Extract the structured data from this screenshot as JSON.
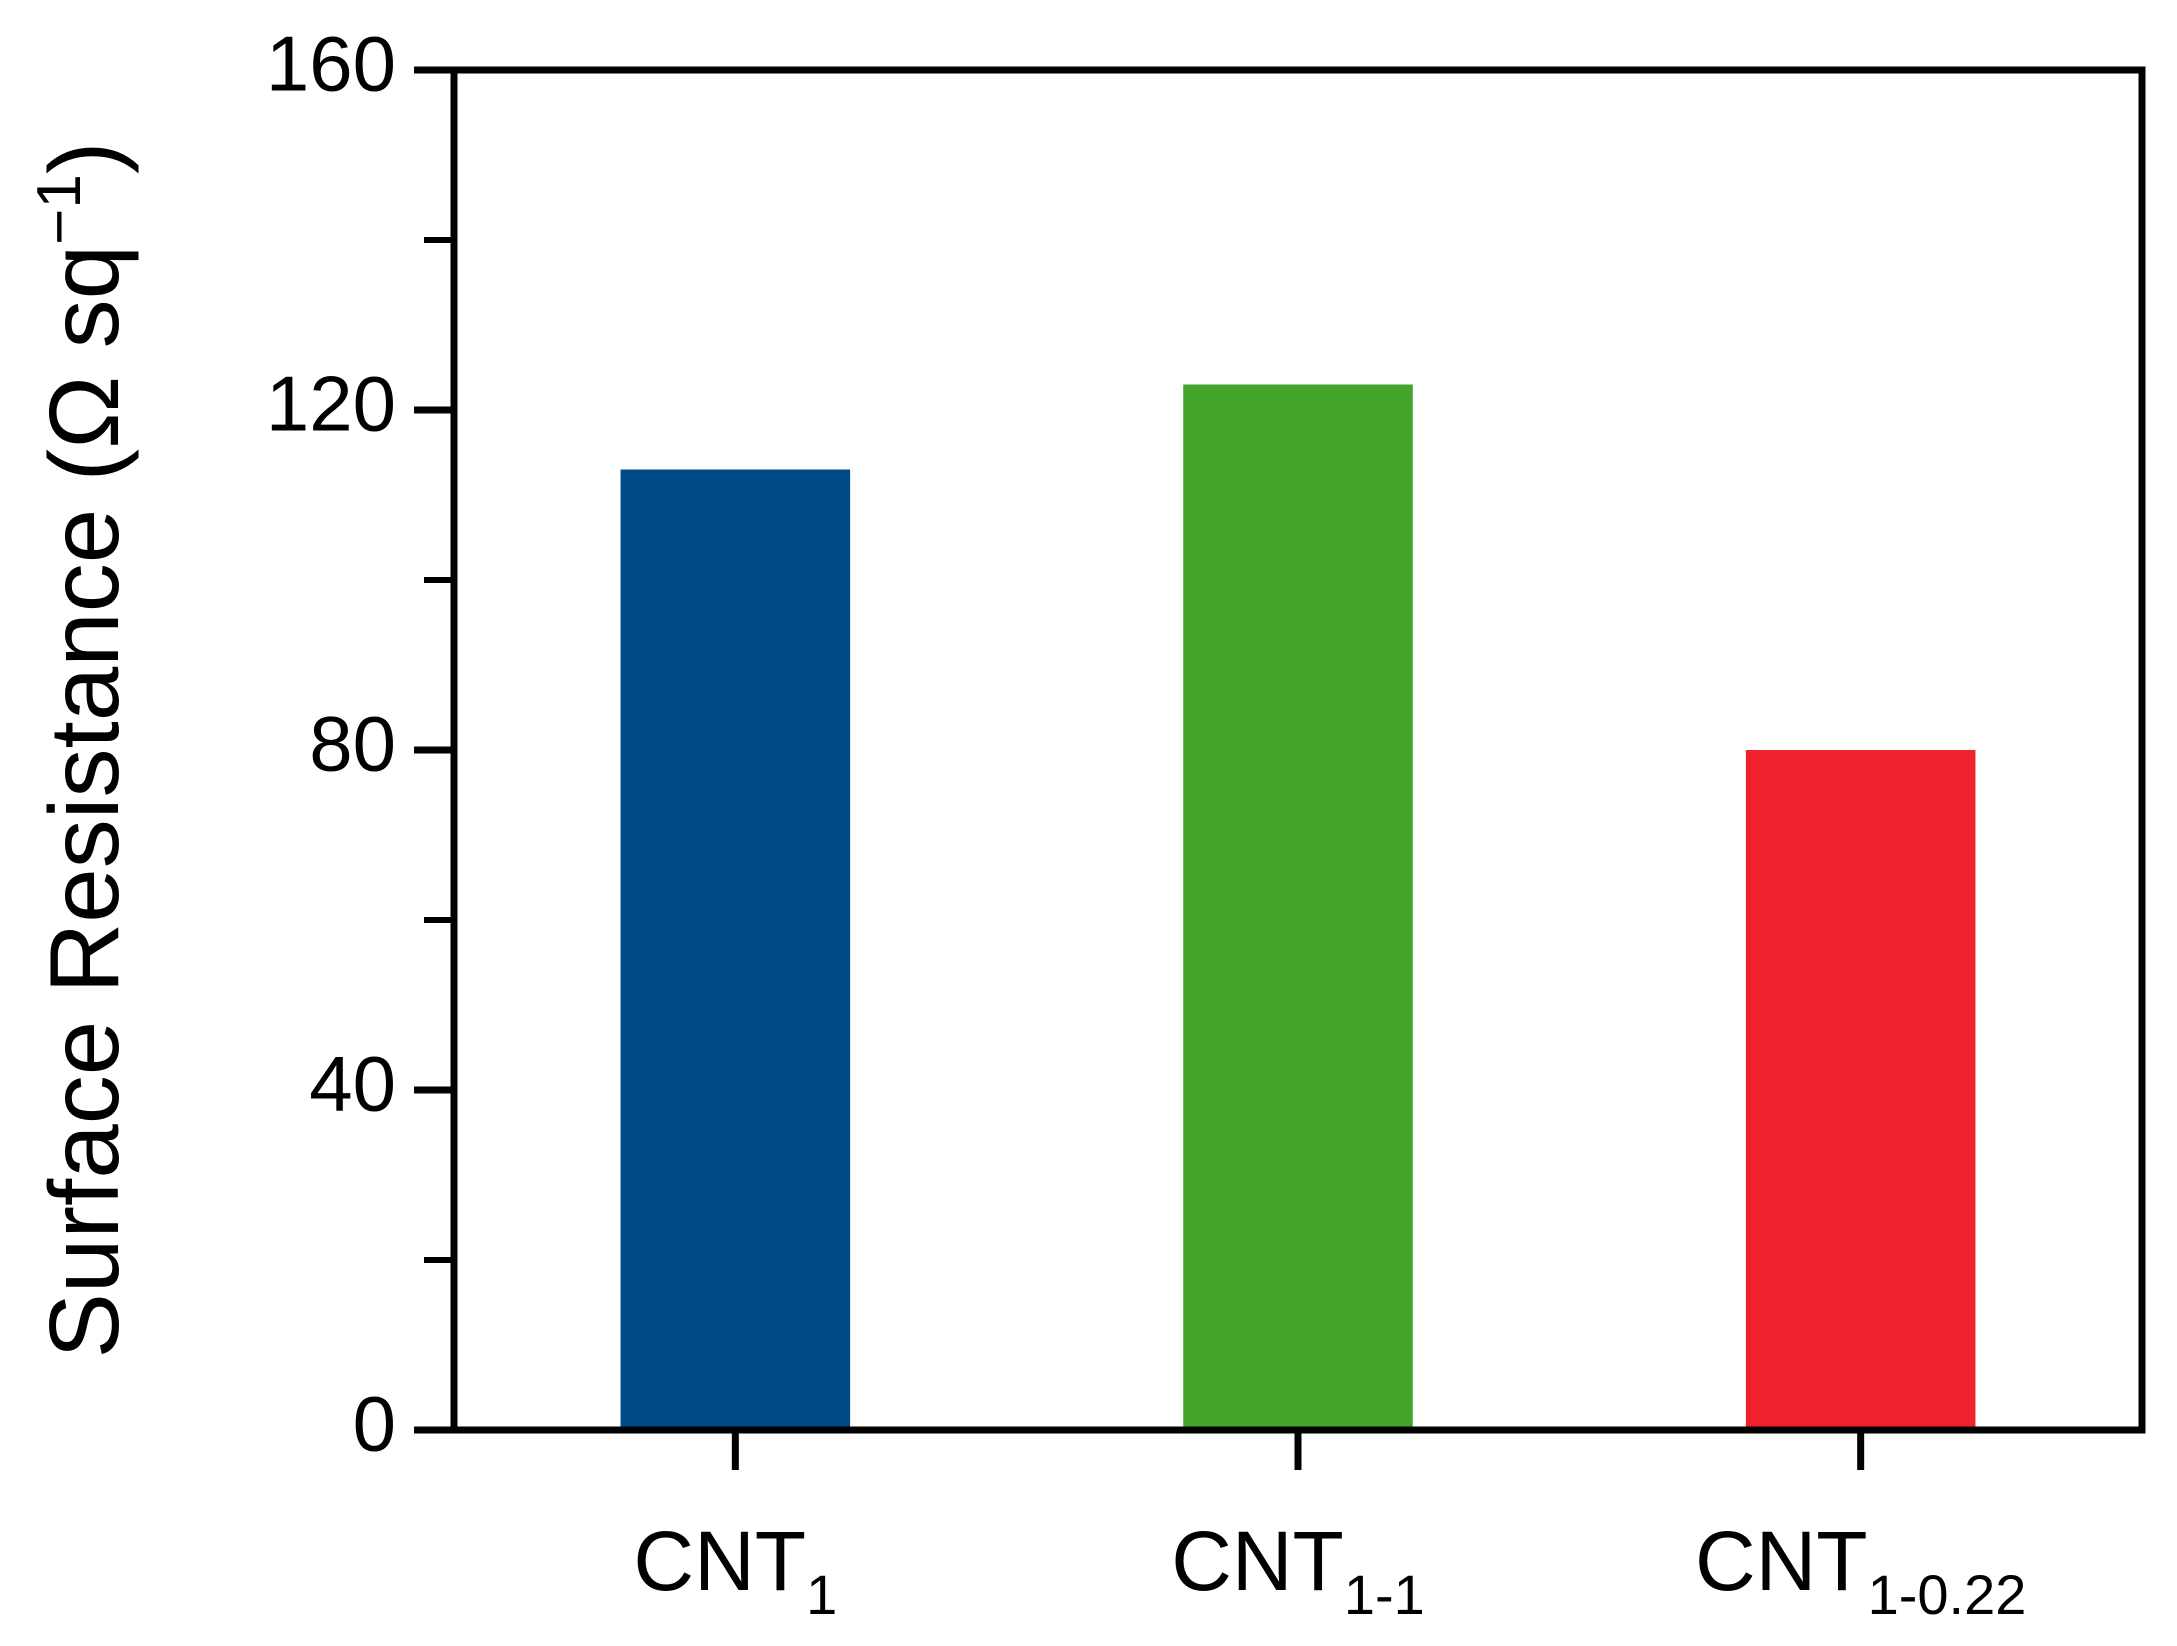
{
  "chart_data": {
    "type": "bar",
    "categories": [
      "CNT",
      "CNT",
      "CNT"
    ],
    "category_subscripts": [
      "1",
      "1-1",
      "1-0.22"
    ],
    "values": [
      113,
      123,
      80
    ],
    "colors": [
      "#004a87",
      "#43a52b",
      "#f0202d"
    ],
    "y_label": "Surface Resistance (Ω sq",
    "y_label_superscript": "−1",
    "y_label_end": ")",
    "ylim": [
      0,
      160
    ],
    "yticks": [
      0,
      40,
      80,
      120,
      160
    ],
    "yminor_ticks": [
      20,
      60,
      100,
      140
    ],
    "grid": false
  }
}
